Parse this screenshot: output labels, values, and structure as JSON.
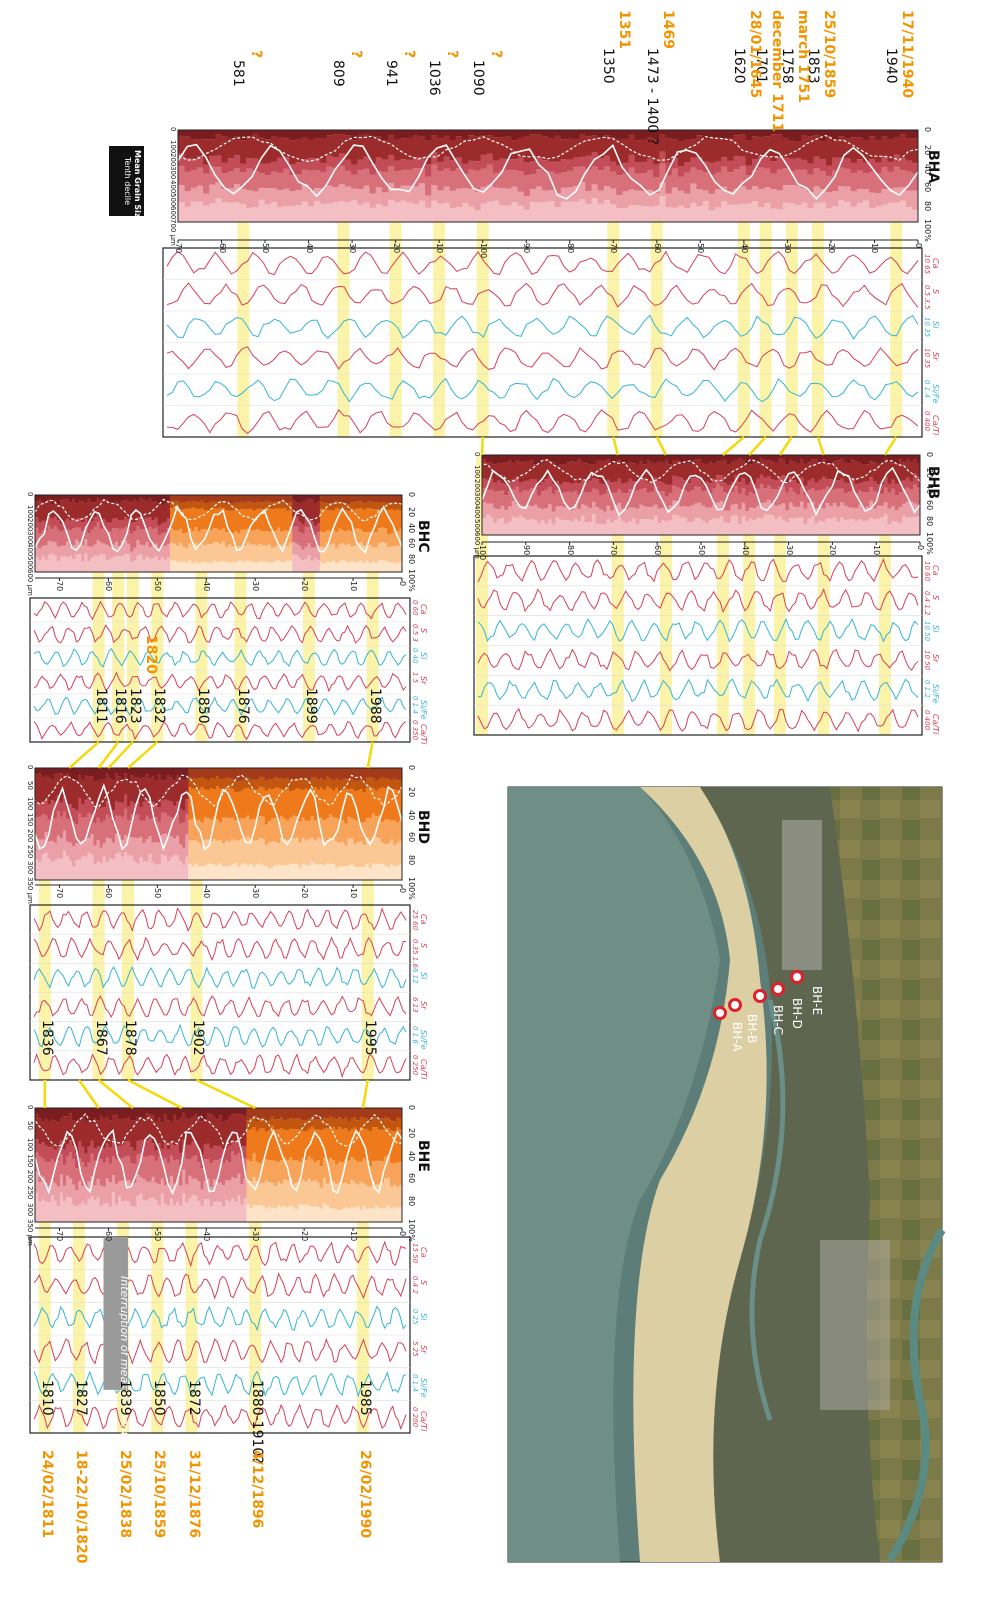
{
  "figure": {
    "cores": [
      {
        "id": "BHA",
        "title": "BHA",
        "depth_max": 170,
        "depth_ticks": [
          "0",
          "10",
          "20",
          "30",
          "40",
          "50",
          "60",
          "70",
          "80",
          "90",
          "100",
          "10",
          "20",
          "30",
          "40",
          "50",
          "60",
          "70"
        ],
        "grain_ticks": [
          "0",
          "20",
          "40",
          "60",
          "80",
          "100%"
        ],
        "mean_ticks": [
          "0",
          "100",
          "200",
          "300",
          "400",
          "500",
          "600",
          "700 µm"
        ],
        "geo_labels": [
          "Ca",
          "S",
          "Si",
          "Sr",
          "Si/Fe",
          "Ca/Ti"
        ],
        "geo_ranges": [
          "10  65",
          "0.5  3.5",
          "10  35",
          "10  35",
          "0  1.4",
          "0  400"
        ]
      },
      {
        "id": "BHB",
        "title": "BHB",
        "depth_max": 100,
        "depth_ticks": [
          "0",
          "10",
          "20",
          "30",
          "40",
          "50",
          "60",
          "70",
          "80",
          "90",
          "100"
        ],
        "grain_ticks": [
          "0",
          "20",
          "40",
          "60",
          "80",
          "100%"
        ],
        "mean_ticks": [
          "0",
          "100",
          "200",
          "300",
          "400",
          "500",
          "600 µm"
        ],
        "geo_labels": [
          "Ca",
          "S",
          "Si",
          "Sr",
          "Si/Fe",
          "Ca/Ti"
        ],
        "geo_ranges": [
          "10  60",
          "0.4  1.2",
          "10  50",
          "10  50",
          "0  1.2",
          "0  400"
        ]
      },
      {
        "id": "BHC",
        "title": "BHC",
        "depth_max": 75,
        "depth_ticks": [
          "0",
          "10",
          "20",
          "30",
          "40",
          "50",
          "60",
          "70"
        ],
        "grain_ticks": [
          "0",
          "20",
          "40",
          "60",
          "80",
          "100%"
        ],
        "mean_ticks": [
          "0",
          "100",
          "200",
          "300",
          "400",
          "500",
          "600 µm"
        ],
        "geo_labels": [
          "Ca",
          "S",
          "Si",
          "Sr",
          "Si/Fe",
          "Ca/Ti"
        ],
        "geo_ranges": [
          "0  60",
          "0.5  3",
          "0  40",
          "1  5",
          "0  1.4",
          "0  350"
        ]
      },
      {
        "id": "BHD",
        "title": "BHD",
        "depth_max": 75,
        "depth_ticks": [
          "0",
          "10",
          "20",
          "30",
          "40",
          "50",
          "60",
          "70"
        ],
        "grain_ticks": [
          "0",
          "20",
          "40",
          "60",
          "80",
          "100%"
        ],
        "mean_ticks": [
          "0",
          "50",
          "100",
          "150",
          "200",
          "250",
          "300",
          "350 µm"
        ],
        "geo_labels": [
          "Ca",
          "S",
          "Si",
          "Sr",
          "Si/Fe",
          "Ca/Ti"
        ],
        "geo_ranges": [
          "25  60",
          "0.35  1.6",
          "6  12",
          "6  13",
          "0  1.6",
          "0  250"
        ]
      },
      {
        "id": "BHE",
        "title": "BHE",
        "depth_max": 75,
        "depth_ticks": [
          "0",
          "10",
          "20",
          "30",
          "40",
          "50",
          "60",
          "70"
        ],
        "grain_ticks": [
          "0",
          "20",
          "40",
          "60",
          "80",
          "100%"
        ],
        "mean_ticks": [
          "0",
          "50",
          "100",
          "150",
          "200",
          "250",
          "300",
          "350 µm"
        ],
        "geo_labels": [
          "Ca",
          "S",
          "Si",
          "Sr",
          "Si/Fe",
          "Ca/Ti"
        ],
        "geo_ranges": [
          "15  50",
          "0.4  2",
          "0  25",
          "5  25",
          "0  1.4",
          "0  200"
        ]
      }
    ],
    "legend_box": {
      "line1": "Mean Grain Size",
      "line2": "Tenth decile"
    },
    "interruption_label": "Interruption of measurements",
    "map_labels": [
      "BH-E",
      "BH-D",
      "BH-C",
      "BH-B",
      "BH-A"
    ],
    "colors": {
      "event_band": "#fbf3a8",
      "orange_text": "#f29400",
      "geo_red": "#d6405a",
      "geo_blue": "#36b4d8",
      "grain_dark": "#9c2b2b",
      "grain_mid": "#d8707a",
      "grain_light": "#f3bfc2",
      "sand": "#ee7a1c",
      "sand_light": "#fbd2a4"
    }
  },
  "chart_data": [
    {
      "type": "table",
      "core": "BHA",
      "title": "BHA",
      "events": [
        {
          "depth": 5,
          "date": "1940",
          "date_orange": "17/11/1940"
        },
        {
          "depth": 23,
          "date": "1853",
          "date_orange": "25/10/1859"
        },
        {
          "depth": 29,
          "date": "1758",
          "date_orange": "march 1751"
        },
        {
          "depth": 35,
          "date": "1701",
          "date_orange": "december 1711"
        },
        {
          "depth": 40,
          "date": "1620",
          "date_orange": "28/01/1645"
        },
        {
          "depth": 60,
          "date": "1473 - 1400 ?",
          "date_orange": "1469"
        },
        {
          "depth": 70,
          "date": "1350",
          "date_orange": "1351"
        },
        {
          "depth": 100,
          "date": "1090",
          "date_orange": "?"
        },
        {
          "depth": 110,
          "date": "1036",
          "date_orange": "?"
        },
        {
          "depth": 120,
          "date": "941",
          "date_orange": "?"
        },
        {
          "depth": 132,
          "date": "809",
          "date_orange": "?"
        },
        {
          "depth": 155,
          "date": "581",
          "date_orange": "?"
        }
      ]
    },
    {
      "type": "table",
      "core": "BHB",
      "title": "BHB",
      "events": [
        {
          "depth": 8
        },
        {
          "depth": 22
        },
        {
          "depth": 32
        },
        {
          "depth": 39
        },
        {
          "depth": 45
        },
        {
          "depth": 58
        },
        {
          "depth": 69
        },
        {
          "depth": 100
        }
      ]
    },
    {
      "type": "table",
      "core": "BHC",
      "title": "BHC",
      "events": [
        {
          "depth": 6,
          "date": "1988"
        },
        {
          "depth": 19,
          "date": "1899"
        },
        {
          "depth": 33,
          "date": "1876"
        },
        {
          "depth": 41,
          "date": "1850"
        },
        {
          "depth": 50,
          "date": "1832"
        },
        {
          "depth": 55,
          "date": "1823",
          "date_orange": "1820"
        },
        {
          "depth": 58,
          "date": "1816"
        },
        {
          "depth": 62,
          "date": "1811"
        }
      ]
    },
    {
      "type": "table",
      "core": "BHD",
      "title": "BHD",
      "events": [
        {
          "depth": 7,
          "date": "1995"
        },
        {
          "depth": 42,
          "date": "1902"
        },
        {
          "depth": 56,
          "date": "1878"
        },
        {
          "depth": 62,
          "date": "1867"
        },
        {
          "depth": 73,
          "date": "1836"
        }
      ]
    },
    {
      "type": "table",
      "core": "BHE",
      "title": "BHE",
      "events": [
        {
          "depth": 8,
          "date": "1985",
          "date_orange": "26/02/1990"
        },
        {
          "depth": 30,
          "date": "1880-1910?",
          "date_orange": "4/12/1896"
        },
        {
          "depth": 43,
          "date": "1872",
          "date_orange": "31/12/1876"
        },
        {
          "depth": 50,
          "date": "1850",
          "date_orange": "25/10/1859"
        },
        {
          "depth": 57,
          "date": "1839",
          "date_orange": "25/02/1838"
        },
        {
          "depth": 66,
          "date": "1827",
          "date_orange": "18-22/10/1820"
        },
        {
          "depth": 73,
          "date": "1810",
          "date_orange": "24/02/1811"
        }
      ]
    }
  ]
}
